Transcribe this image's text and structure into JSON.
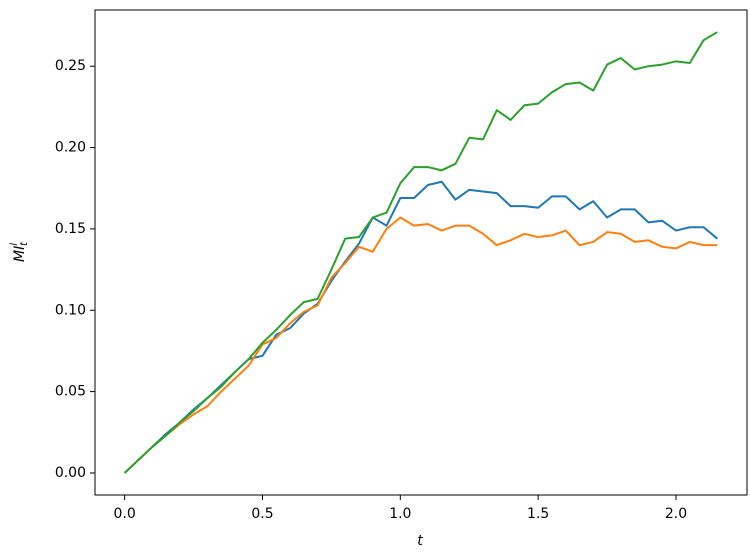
{
  "chart_data": {
    "type": "line",
    "xlabel": "t",
    "ylabel": "MI",
    "ylabel_sup": "l",
    "ylabel_sub": "t",
    "x": [
      0,
      0.05,
      0.1,
      0.15,
      0.2,
      0.25,
      0.3,
      0.35,
      0.4,
      0.45,
      0.5,
      0.55,
      0.6,
      0.65,
      0.7,
      0.75,
      0.8,
      0.85,
      0.9,
      0.95,
      1.0,
      1.05,
      1.1,
      1.15,
      1.2,
      1.25,
      1.3,
      1.35,
      1.4,
      1.45,
      1.5,
      1.55,
      1.6,
      1.65,
      1.7,
      1.75,
      1.8,
      1.85,
      1.9,
      1.95,
      2.0,
      2.05,
      2.1,
      2.15
    ],
    "series": [
      {
        "color": "#1f77b4",
        "values": [
          0,
          0.008,
          0.016,
          0.024,
          0.031,
          0.039,
          0.046,
          0.054,
          0.062,
          0.07,
          0.072,
          0.085,
          0.089,
          0.098,
          0.104,
          0.118,
          0.13,
          0.141,
          0.157,
          0.152,
          0.169,
          0.169,
          0.177,
          0.179,
          0.168,
          0.174,
          0.173,
          0.172,
          0.164,
          0.164,
          0.163,
          0.17,
          0.17,
          0.162,
          0.167,
          0.157,
          0.162,
          0.162,
          0.154,
          0.155,
          0.149,
          0.151,
          0.151,
          0.144
        ]
      },
      {
        "color": "#ff7f0e",
        "values": [
          0,
          0.008,
          0.016,
          0.023,
          0.03,
          0.036,
          0.041,
          0.05,
          0.058,
          0.066,
          0.079,
          0.083,
          0.092,
          0.099,
          0.103,
          0.12,
          0.129,
          0.139,
          0.136,
          0.15,
          0.157,
          0.152,
          0.153,
          0.149,
          0.152,
          0.152,
          0.147,
          0.14,
          0.143,
          0.147,
          0.145,
          0.146,
          0.149,
          0.14,
          0.142,
          0.148,
          0.147,
          0.142,
          0.143,
          0.139,
          0.138,
          0.142,
          0.14,
          0.14
        ]
      },
      {
        "color": "#2ca02c",
        "values": [
          0,
          0.008,
          0.016,
          0.023,
          0.031,
          0.038,
          0.046,
          0.053,
          0.062,
          0.07,
          0.08,
          0.088,
          0.097,
          0.105,
          0.107,
          0.125,
          0.144,
          0.145,
          0.157,
          0.16,
          0.178,
          0.188,
          0.188,
          0.186,
          0.19,
          0.206,
          0.205,
          0.223,
          0.217,
          0.226,
          0.227,
          0.234,
          0.239,
          0.24,
          0.235,
          0.251,
          0.255,
          0.248,
          0.25,
          0.251,
          0.253,
          0.252,
          0.266,
          0.271
        ]
      }
    ],
    "xlim": [
      -0.1075,
      2.2575
    ],
    "ylim": [
      -0.01355,
      0.28455
    ],
    "xticks": [
      {
        "value": 0,
        "label": "0.0"
      },
      {
        "value": 0.5,
        "label": "0.5"
      },
      {
        "value": 1,
        "label": "1.0"
      },
      {
        "value": 1.5,
        "label": "1.5"
      },
      {
        "value": 2,
        "label": "2.0"
      }
    ],
    "yticks": [
      {
        "value": 0,
        "label": "0.00"
      },
      {
        "value": 0.05,
        "label": "0.05"
      },
      {
        "value": 0.1,
        "label": "0.10"
      },
      {
        "value": 0.15,
        "label": "0.15"
      },
      {
        "value": 0.2,
        "label": "0.20"
      },
      {
        "value": 0.25,
        "label": "0.25"
      }
    ],
    "grid": false
  }
}
